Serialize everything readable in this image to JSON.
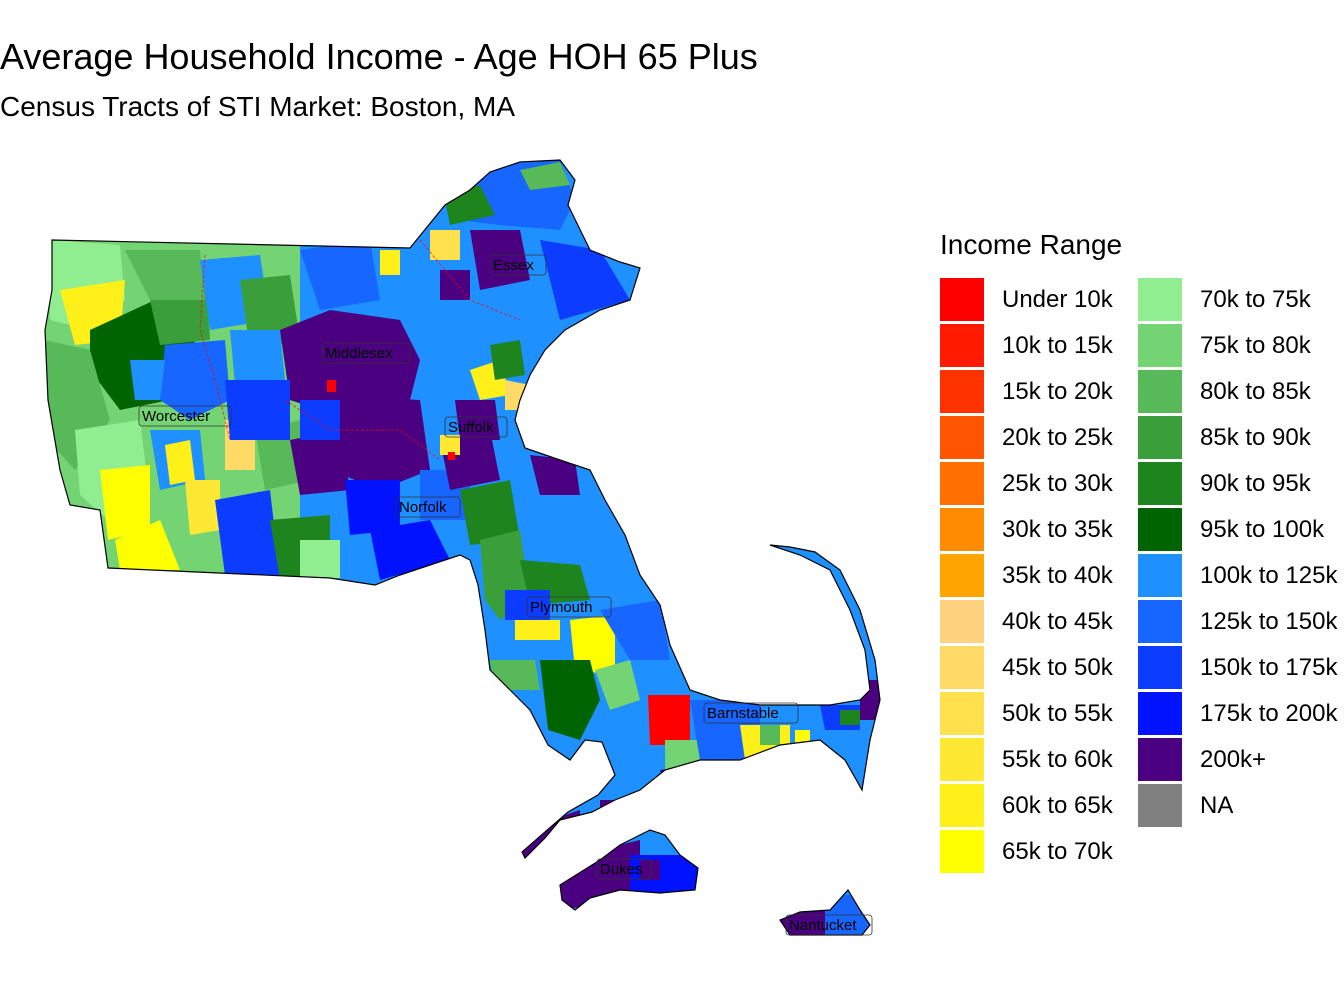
{
  "title": "Average Household Income - Age HOH 65 Plus",
  "subtitle": "Census Tracts of STI Market: Boston, MA",
  "legend": {
    "title": "Income Range",
    "items": [
      {
        "label": "Under 10k",
        "color": "#FF0000"
      },
      {
        "label": "10k to 15k",
        "color": "#FF1A00"
      },
      {
        "label": "15k to 20k",
        "color": "#FF3300"
      },
      {
        "label": "20k to 25k",
        "color": "#FF5500"
      },
      {
        "label": "25k to 30k",
        "color": "#FF7000"
      },
      {
        "label": "30k to 35k",
        "color": "#FF8C00"
      },
      {
        "label": "35k to 40k",
        "color": "#FFA500"
      },
      {
        "label": "40k to 45k",
        "color": "#FFD27F"
      },
      {
        "label": "45k to 50k",
        "color": "#FFDA66"
      },
      {
        "label": "50k to 55k",
        "color": "#FFE14D"
      },
      {
        "label": "55k to 60k",
        "color": "#FFE833"
      },
      {
        "label": "60k to 65k",
        "color": "#FFF01A"
      },
      {
        "label": "65k to 70k",
        "color": "#FFFF00"
      },
      {
        "label": "70k to 75k",
        "color": "#90EE90"
      },
      {
        "label": "75k to 80k",
        "color": "#74D474"
      },
      {
        "label": "80k to 85k",
        "color": "#57B957"
      },
      {
        "label": "85k to 90k",
        "color": "#3A9F3A"
      },
      {
        "label": "90k to 95k",
        "color": "#1E841E"
      },
      {
        "label": "95k to 100k",
        "color": "#006400"
      },
      {
        "label": "100k to 125k",
        "color": "#1E90FF"
      },
      {
        "label": "125k to 150k",
        "color": "#1666FF"
      },
      {
        "label": "150k to 175k",
        "color": "#0B3CFF"
      },
      {
        "label": "175k to 200k",
        "color": "#0012FF"
      },
      {
        "label": "200k+",
        "color": "#4B0082"
      },
      {
        "label": "NA",
        "color": "#808080"
      }
    ]
  },
  "counties": [
    {
      "name": "Essex"
    },
    {
      "name": "Middlesex"
    },
    {
      "name": "Worcester"
    },
    {
      "name": "Suffolk"
    },
    {
      "name": "Norfolk"
    },
    {
      "name": "Plymouth"
    },
    {
      "name": "Barnstable"
    },
    {
      "name": "Dukes"
    },
    {
      "name": "Nantucket"
    }
  ]
}
